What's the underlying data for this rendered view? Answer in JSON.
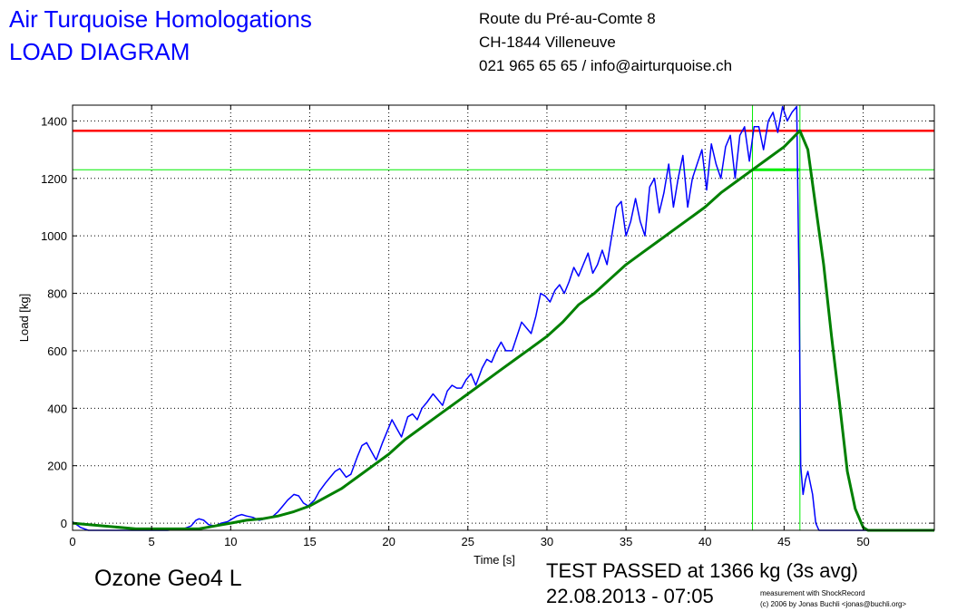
{
  "header": {
    "company": "Air Turquoise Homologations",
    "doc_title": "LOAD DIAGRAM",
    "address_line1": "Route du Pré-au-Comte 8",
    "address_line2": "CH-1844 Villeneuve",
    "contact": "021 965 65 65 / info@airturquoise.ch"
  },
  "footer": {
    "model": "Ozone Geo4 L",
    "result": "TEST PASSED at 1366 kg (3s avg)",
    "datetime": "22.08.2013 - 07:05",
    "credit_line1": "measurement with ShockRecord",
    "credit_line2": "(c) 2006 by Jonas Buchli <jonas@buchli.org>"
  },
  "colors": {
    "raw": "#0000ff",
    "avg": "#008000",
    "threshold": "#ff0000",
    "markers": "#00ee00",
    "grid": "#000000"
  },
  "chart_data": {
    "type": "line",
    "xlabel": "Time [s]",
    "ylabel": "Load [kg]",
    "xlim": [
      0,
      54.5
    ],
    "ylim": [
      -25,
      1455
    ],
    "xticks": [
      0,
      5,
      10,
      15,
      20,
      25,
      30,
      35,
      40,
      45,
      50
    ],
    "yticks": [
      0,
      200,
      400,
      600,
      800,
      1000,
      1200,
      1400
    ],
    "grid": true,
    "reference_lines": {
      "horizontal": [
        {
          "y": 1366,
          "color": "red"
        },
        {
          "y": 1230,
          "color": "green"
        }
      ],
      "vertical": [
        {
          "x": 43.0,
          "color": "green"
        },
        {
          "x": 46.0,
          "color": "green"
        }
      ],
      "hold_segment": {
        "x": [
          43.0,
          46.0
        ],
        "y": 1230
      }
    },
    "series": [
      {
        "color": "blue",
        "x": [
          0,
          0.5,
          1,
          2,
          3,
          4,
          5,
          6,
          7,
          7.5,
          7.8,
          8,
          8.3,
          8.6,
          9,
          9.4,
          9.8,
          10.1,
          10.4,
          10.7,
          11,
          11.4,
          11.8,
          12.2,
          12.6,
          13,
          13.3,
          13.6,
          14,
          14.3,
          14.6,
          14.9,
          15.3,
          15.6,
          16,
          16.3,
          16.6,
          16.9,
          17.3,
          17.6,
          18,
          18.3,
          18.6,
          18.9,
          19.2,
          19.6,
          19.9,
          20.2,
          20.5,
          20.8,
          21.2,
          21.5,
          21.8,
          22.1,
          22.4,
          22.8,
          23.1,
          23.4,
          23.7,
          24,
          24.3,
          24.6,
          24.9,
          25.2,
          25.5,
          25.9,
          26.2,
          26.5,
          26.8,
          27.1,
          27.4,
          27.8,
          28.1,
          28.4,
          28.7,
          29,
          29.3,
          29.6,
          29.9,
          30.2,
          30.5,
          30.8,
          31.1,
          31.4,
          31.7,
          32,
          32.3,
          32.6,
          32.9,
          33.2,
          33.5,
          33.8,
          34.1,
          34.4,
          34.7,
          35,
          35.3,
          35.6,
          35.9,
          36.2,
          36.5,
          36.8,
          37.1,
          37.4,
          37.7,
          38,
          38.3,
          38.6,
          38.9,
          39.2,
          39.5,
          39.8,
          40.1,
          40.4,
          40.7,
          41,
          41.3,
          41.6,
          41.9,
          42.2,
          42.5,
          42.8,
          43.1,
          43.4,
          43.7,
          44,
          44.3,
          44.6,
          44.9,
          45.2,
          45.5,
          45.8,
          45.95,
          46.05,
          46.2,
          46.35,
          46.5,
          46.8,
          47.0,
          47.2,
          47.5,
          48,
          50,
          54.5
        ],
        "values": [
          5,
          -15,
          -25,
          -25,
          -25,
          -25,
          -25,
          -25,
          -20,
          -10,
          10,
          15,
          10,
          -5,
          -10,
          0,
          5,
          15,
          25,
          30,
          25,
          20,
          10,
          15,
          20,
          40,
          60,
          80,
          100,
          95,
          70,
          60,
          80,
          110,
          140,
          160,
          180,
          190,
          160,
          170,
          230,
          270,
          280,
          250,
          220,
          280,
          320,
          360,
          330,
          300,
          370,
          380,
          360,
          400,
          420,
          450,
          430,
          410,
          460,
          480,
          470,
          470,
          500,
          520,
          480,
          540,
          570,
          560,
          600,
          630,
          600,
          600,
          650,
          700,
          680,
          660,
          720,
          800,
          790,
          770,
          810,
          830,
          800,
          840,
          890,
          860,
          900,
          940,
          870,
          900,
          950,
          900,
          1000,
          1100,
          1120,
          1000,
          1050,
          1130,
          1050,
          1000,
          1170,
          1200,
          1080,
          1150,
          1250,
          1100,
          1200,
          1280,
          1100,
          1200,
          1250,
          1300,
          1160,
          1320,
          1250,
          1200,
          1310,
          1350,
          1200,
          1350,
          1380,
          1260,
          1380,
          1380,
          1300,
          1400,
          1430,
          1360,
          1450,
          1400,
          1430,
          1450,
          800,
          200,
          100,
          150,
          180,
          100,
          0,
          -25,
          -25,
          -25,
          -25,
          -25
        ]
      },
      {
        "color": "green",
        "x": [
          0,
          2,
          4,
          6,
          8,
          9,
          10,
          11,
          12,
          13,
          14,
          15,
          16,
          17,
          18,
          19,
          20,
          21,
          22,
          23,
          24,
          25,
          26,
          27,
          28,
          29,
          30,
          31,
          32,
          33,
          34,
          35,
          36,
          37,
          38,
          39,
          40,
          41,
          42,
          43,
          44,
          45,
          46,
          46.5,
          47,
          47.5,
          48,
          48.5,
          49,
          49.5,
          50,
          50.3,
          51,
          54.5
        ],
        "values": [
          0,
          -10,
          -20,
          -20,
          -20,
          -10,
          0,
          10,
          15,
          25,
          40,
          60,
          90,
          120,
          160,
          200,
          240,
          290,
          330,
          370,
          410,
          450,
          490,
          530,
          570,
          610,
          650,
          700,
          760,
          800,
          850,
          900,
          940,
          980,
          1020,
          1060,
          1100,
          1150,
          1190,
          1230,
          1270,
          1310,
          1366,
          1300,
          1100,
          900,
          650,
          420,
          180,
          50,
          -15,
          -25,
          -25,
          -25
        ]
      }
    ]
  }
}
